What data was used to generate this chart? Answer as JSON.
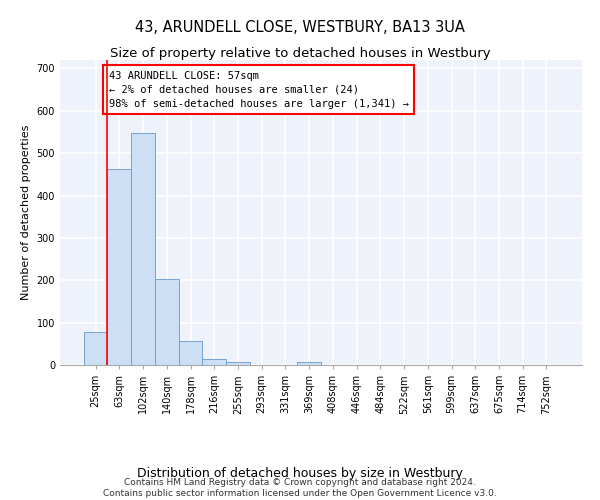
{
  "title": "43, ARUNDELL CLOSE, WESTBURY, BA13 3UA",
  "subtitle": "Size of property relative to detached houses in Westbury",
  "xlabel": "Distribution of detached houses by size in Westbury",
  "ylabel": "Number of detached properties",
  "bar_values": [
    78,
    462,
    548,
    203,
    56,
    15,
    8,
    0,
    0,
    8,
    0,
    0,
    0,
    0,
    0,
    0,
    0,
    0,
    0,
    0
  ],
  "bar_labels": [
    "25sqm",
    "63sqm",
    "102sqm",
    "140sqm",
    "178sqm",
    "216sqm",
    "255sqm",
    "293sqm",
    "331sqm",
    "369sqm",
    "408sqm",
    "446sqm",
    "484sqm",
    "522sqm",
    "561sqm",
    "599sqm",
    "637sqm",
    "675sqm",
    "714sqm",
    "752sqm"
  ],
  "bar_color": "#ccdff5",
  "bar_edge_color": "#6699cc",
  "annotation_text": "43 ARUNDELL CLOSE: 57sqm\n← 2% of detached houses are smaller (24)\n98% of semi-detached houses are larger (1,341) →",
  "annotation_box_color": "white",
  "annotation_box_edge_color": "red",
  "vline_color": "red",
  "ylim": [
    0,
    720
  ],
  "yticks": [
    0,
    100,
    200,
    300,
    400,
    500,
    600,
    700
  ],
  "bg_color": "#eef2fb",
  "grid_color": "white",
  "footer": "Contains HM Land Registry data © Crown copyright and database right 2024.\nContains public sector information licensed under the Open Government Licence v3.0.",
  "title_fontsize": 10.5,
  "subtitle_fontsize": 9.5,
  "xlabel_fontsize": 9,
  "ylabel_fontsize": 8,
  "tick_fontsize": 7,
  "annotation_fontsize": 7.5,
  "footer_fontsize": 6.5
}
